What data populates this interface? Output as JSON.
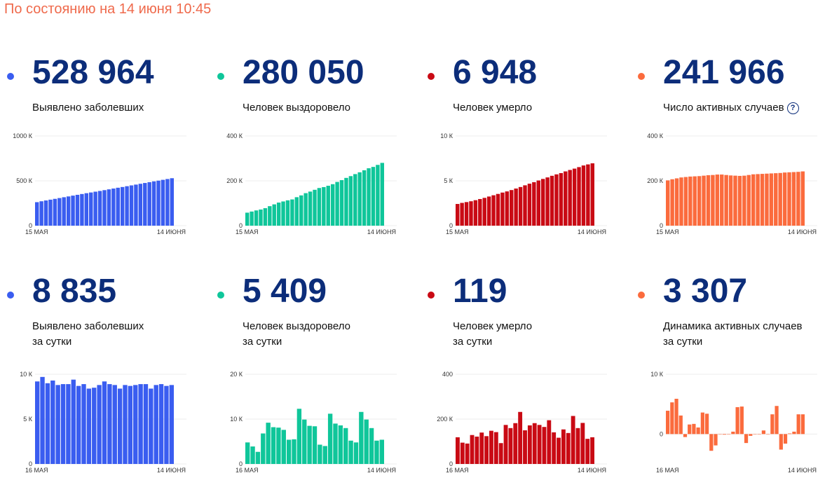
{
  "status_text": "По состоянию на 14 июня 10:45",
  "colors": {
    "blue": "#3a5df0",
    "green": "#0fc69a",
    "red": "#c90a14",
    "orange": "#fb6b3d",
    "value": "#0c2d7a"
  },
  "help_icon": "?",
  "cards": [
    {
      "value": "528 964",
      "label_line1": "Выявлено заболевших",
      "label_line2": "",
      "color": "blue",
      "chart_data": {
        "type": "bar",
        "ylim": [
          0,
          1000
        ],
        "yticks": [
          {
            "v": 0,
            "label": "0"
          },
          {
            "v": 500,
            "label": "500 К"
          },
          {
            "v": 1000,
            "label": "1000 К"
          }
        ],
        "x_start_label": "15 МАЯ",
        "x_end_label": "14 ИЮНЯ",
        "values": [
          262,
          272,
          281,
          290,
          299,
          308,
          317,
          326,
          335,
          344,
          353,
          362,
          370,
          379,
          387,
          396,
          405,
          414,
          423,
          431,
          440,
          449,
          458,
          467,
          476,
          485,
          494,
          502,
          511,
          520,
          529
        ]
      }
    },
    {
      "value": "280 050",
      "label_line1": "Человек выздоровело",
      "label_line2": "",
      "color": "green",
      "chart_data": {
        "type": "bar",
        "ylim": [
          0,
          400
        ],
        "yticks": [
          {
            "v": 0,
            "label": "0"
          },
          {
            "v": 200,
            "label": "200 К"
          },
          {
            "v": 400,
            "label": "400 К"
          }
        ],
        "x_start_label": "15 МАЯ",
        "x_end_label": "14 ИЮНЯ",
        "values": [
          58,
          63,
          68,
          72,
          78,
          87,
          95,
          103,
          108,
          113,
          117,
          127,
          135,
          145,
          152,
          160,
          168,
          172,
          178,
          185,
          195,
          203,
          213,
          221,
          230,
          238,
          247,
          256,
          262,
          271,
          280
        ]
      }
    },
    {
      "value": "6 948",
      "label_line1": "Человек умерло",
      "label_line2": "",
      "color": "red",
      "chart_data": {
        "type": "bar",
        "ylim": [
          0,
          10
        ],
        "yticks": [
          {
            "v": 0,
            "label": "0"
          },
          {
            "v": 5,
            "label": "5 К"
          },
          {
            "v": 10,
            "label": "10 К"
          }
        ],
        "x_start_label": "15 МАЯ",
        "x_end_label": "14 ИЮНЯ",
        "values": [
          2.42,
          2.54,
          2.63,
          2.72,
          2.84,
          2.97,
          3.1,
          3.25,
          3.39,
          3.54,
          3.69,
          3.82,
          3.97,
          4.14,
          4.31,
          4.5,
          4.68,
          4.85,
          5.04,
          5.21,
          5.38,
          5.56,
          5.72,
          5.86,
          6.05,
          6.21,
          6.36,
          6.53,
          6.71,
          6.83,
          6.95
        ]
      }
    },
    {
      "value": "241 966",
      "label_line1": "Число активных случаев",
      "label_line2": "",
      "color": "orange",
      "help": true,
      "chart_data": {
        "type": "bar",
        "ylim": [
          0,
          400
        ],
        "yticks": [
          {
            "v": 0,
            "label": "0"
          },
          {
            "v": 200,
            "label": "200 К"
          },
          {
            "v": 400,
            "label": "400 К"
          }
        ],
        "x_start_label": "15 МАЯ",
        "x_end_label": "14 ИЮНЯ",
        "values": [
          202,
          207,
          211,
          215,
          217,
          219,
          220,
          221,
          223,
          225,
          226,
          228,
          228,
          226,
          224,
          223,
          222,
          223,
          226,
          229,
          230,
          231,
          232,
          233,
          234,
          235,
          237,
          238,
          239,
          240,
          242
        ]
      }
    },
    {
      "value": "8 835",
      "label_line1": "Выявлено заболевших",
      "label_line2": "за сутки",
      "color": "blue",
      "chart_data": {
        "type": "bar",
        "ylim": [
          0,
          10
        ],
        "yticks": [
          {
            "v": 0,
            "label": "0"
          },
          {
            "v": 5,
            "label": "5 К"
          },
          {
            "v": 10,
            "label": "10 К"
          }
        ],
        "x_start_label": "16 МАЯ",
        "x_end_label": "14 ИЮНЯ",
        "values": [
          9.2,
          9.7,
          9.0,
          9.3,
          8.8,
          8.9,
          8.9,
          9.4,
          8.7,
          8.9,
          8.4,
          8.5,
          8.8,
          9.2,
          8.9,
          8.8,
          8.4,
          8.8,
          8.7,
          8.8,
          8.9,
          8.9,
          8.4,
          8.8,
          8.9,
          8.7,
          8.8
        ]
      }
    },
    {
      "value": "5 409",
      "label_line1": "Человек выздоровело",
      "label_line2": "за сутки",
      "color": "green",
      "chart_data": {
        "type": "bar",
        "ylim": [
          0,
          20
        ],
        "yticks": [
          {
            "v": 0,
            "label": "0"
          },
          {
            "v": 10,
            "label": "10 К"
          },
          {
            "v": 20,
            "label": "20 К"
          }
        ],
        "x_start_label": "16 МАЯ",
        "x_end_label": "14 ИЮНЯ",
        "values": [
          4.8,
          3.9,
          2.7,
          6.8,
          9.2,
          8.2,
          8.1,
          7.6,
          5.4,
          5.5,
          12.3,
          9.9,
          8.5,
          8.4,
          4.3,
          4.0,
          11.2,
          9.0,
          8.6,
          8.0,
          5.2,
          4.8,
          11.6,
          9.9,
          8.0,
          5.2,
          5.4
        ]
      }
    },
    {
      "value": "119",
      "label_line1": "Человек умерло",
      "label_line2": "за сутки",
      "color": "red",
      "chart_data": {
        "type": "bar",
        "ylim": [
          0,
          400
        ],
        "yticks": [
          {
            "v": 0,
            "label": "0"
          },
          {
            "v": 200,
            "label": "200 К"
          },
          {
            "v": 400,
            "label": "400"
          }
        ],
        "x_start_label": "16 МАЯ",
        "x_end_label": "14 ИЮНЯ",
        "values": [
          119,
          95,
          91,
          129,
          122,
          140,
          124,
          148,
          142,
          93,
          174,
          160,
          182,
          232,
          150,
          172,
          182,
          174,
          165,
          195,
          141,
          117,
          154,
          138,
          214,
          160,
          183,
          112,
          119
        ]
      }
    },
    {
      "value": "3 307",
      "label_line1": "Динамика активных случаев",
      "label_line2": "за сутки",
      "color": "orange",
      "chart_data": {
        "type": "bar",
        "ylim": [
          -5,
          10
        ],
        "yticks": [
          {
            "v": 0,
            "label": "0"
          },
          {
            "v": 10,
            "label": "10 К"
          }
        ],
        "x_start_label": "16 МАЯ",
        "x_end_label": "14 ИЮНЯ",
        "values": [
          3.9,
          5.3,
          5.9,
          3.1,
          -0.5,
          1.6,
          1.7,
          1.1,
          3.6,
          3.4,
          -2.8,
          -1.9,
          0.0,
          -0.1,
          0.0,
          0.4,
          4.5,
          4.6,
          -1.5,
          -0.3,
          0.0,
          0.0,
          0.6,
          0.0,
          3.3,
          4.7,
          -2.6,
          -1.6,
          0.1,
          0.4,
          3.3,
          3.3
        ]
      }
    }
  ]
}
